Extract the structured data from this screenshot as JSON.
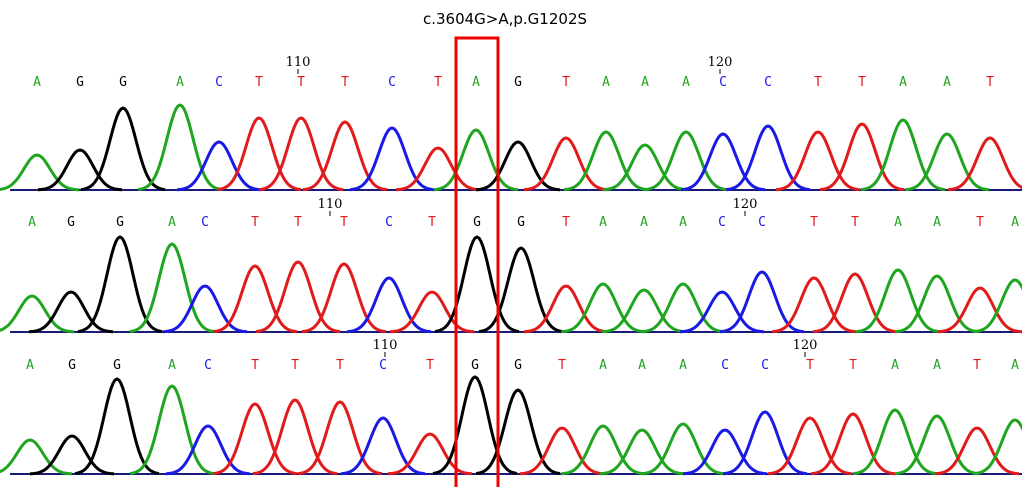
{
  "annotation": "c.3604G>A,p.G1202S",
  "tracks": [
    {
      "position_labels": [
        "110",
        "120"
      ],
      "bases": [
        "A",
        "G",
        "G",
        "A",
        "C",
        "T",
        "T",
        "T",
        "C",
        "T",
        "A",
        "G",
        "T",
        "A",
        "A",
        "A",
        "C",
        "C",
        "T",
        "T",
        "A",
        "A",
        "T"
      ]
    },
    {
      "position_labels": [
        "110",
        "120"
      ],
      "bases": [
        "A",
        "G",
        "G",
        "A",
        "C",
        "T",
        "T",
        "T",
        "C",
        "T",
        "G",
        "G",
        "T",
        "A",
        "A",
        "A",
        "C",
        "C",
        "T",
        "T",
        "A",
        "A",
        "T",
        "A"
      ]
    },
    {
      "position_labels": [
        "110",
        "120"
      ],
      "bases": [
        "A",
        "G",
        "G",
        "A",
        "C",
        "T",
        "T",
        "T",
        "C",
        "T",
        "G",
        "G",
        "T",
        "A",
        "A",
        "A",
        "C",
        "C",
        "T",
        "T",
        "A",
        "A",
        "T",
        "A"
      ]
    }
  ]
}
